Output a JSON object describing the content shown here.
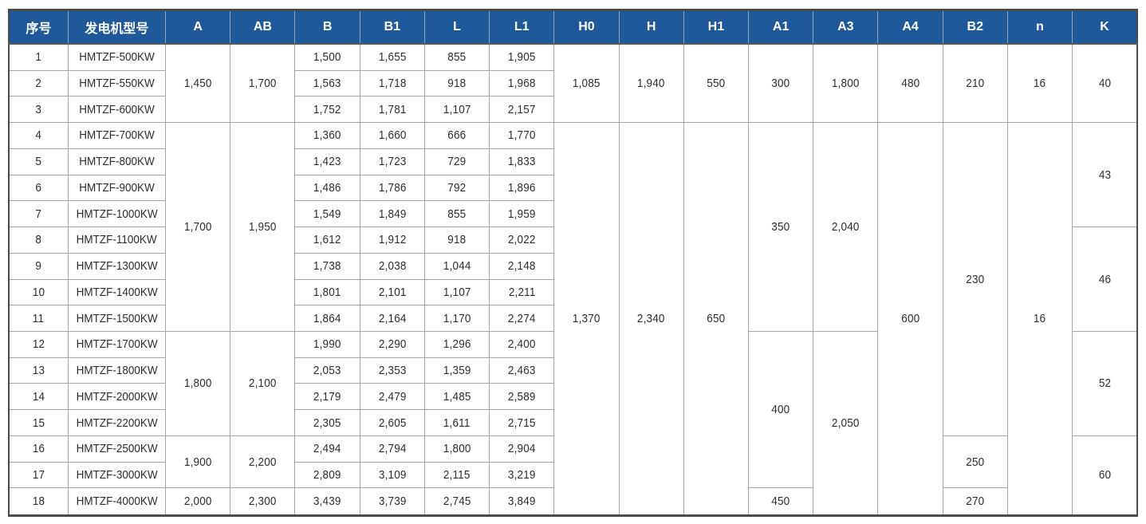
{
  "colors": {
    "header_bg": "#1e599c",
    "header_text": "#ffffff",
    "grid_line": "#a6a6a6",
    "outer_border": "#4a4a4a",
    "body_text": "#2d2d2d",
    "background": "#ffffff"
  },
  "table": {
    "headers": [
      {
        "key": "no",
        "label": "序号"
      },
      {
        "key": "model",
        "label": "发电机型号"
      },
      {
        "key": "A",
        "label": "A"
      },
      {
        "key": "AB",
        "label": "AB"
      },
      {
        "key": "B",
        "label": "B"
      },
      {
        "key": "B1",
        "label": "B1"
      },
      {
        "key": "L",
        "label": "L"
      },
      {
        "key": "L1",
        "label": "L1"
      },
      {
        "key": "H0",
        "label": "H0"
      },
      {
        "key": "H",
        "label": "H"
      },
      {
        "key": "H1",
        "label": "H1"
      },
      {
        "key": "A1",
        "label": "A1"
      },
      {
        "key": "A3",
        "label": "A3"
      },
      {
        "key": "A4",
        "label": "A4"
      },
      {
        "key": "B2",
        "label": "B2"
      },
      {
        "key": "n",
        "label": "n"
      },
      {
        "key": "K",
        "label": "K"
      }
    ],
    "rows": [
      [
        [
          "no",
          "1"
        ],
        [
          "model",
          "HMTZF-500KW"
        ],
        [
          "A",
          "1,450",
          3
        ],
        [
          "AB",
          "1,700",
          3
        ],
        [
          "B",
          "1,500"
        ],
        [
          "B1",
          "1,655"
        ],
        [
          "L",
          "855"
        ],
        [
          "L1",
          "1,905"
        ],
        [
          "H0",
          "1,085",
          3
        ],
        [
          "H",
          "1,940",
          3
        ],
        [
          "H1",
          "550",
          3
        ],
        [
          "A1",
          "300",
          3
        ],
        [
          "A3",
          "1,800",
          3
        ],
        [
          "A4",
          "480",
          3
        ],
        [
          "B2",
          "210",
          3
        ],
        [
          "n",
          "16",
          3
        ],
        [
          "K",
          "40",
          3
        ]
      ],
      [
        [
          "no",
          "2"
        ],
        [
          "model",
          "HMTZF-550KW"
        ],
        [
          "B",
          "1,563"
        ],
        [
          "B1",
          "1,718"
        ],
        [
          "L",
          "918"
        ],
        [
          "L1",
          "1,968"
        ]
      ],
      [
        [
          "no",
          "3"
        ],
        [
          "model",
          "HMTZF-600KW"
        ],
        [
          "B",
          "1,752"
        ],
        [
          "B1",
          "1,781"
        ],
        [
          "L",
          "1,107"
        ],
        [
          "L1",
          "2,157"
        ]
      ],
      [
        [
          "no",
          "4"
        ],
        [
          "model",
          "HMTZF-700KW"
        ],
        [
          "A",
          "1,700",
          8
        ],
        [
          "AB",
          "1,950",
          8
        ],
        [
          "B",
          "1,360"
        ],
        [
          "B1",
          "1,660"
        ],
        [
          "L",
          "666"
        ],
        [
          "L1",
          "1,770"
        ],
        [
          "H0",
          "1,370",
          15
        ],
        [
          "H",
          "2,340",
          15
        ],
        [
          "H1",
          "650",
          15
        ],
        [
          "A1",
          "350",
          8
        ],
        [
          "A3",
          "2,040",
          8
        ],
        [
          "A4",
          "600",
          15
        ],
        [
          "B2",
          "230",
          12
        ],
        [
          "n",
          "16",
          15
        ],
        [
          "K",
          "43",
          4
        ]
      ],
      [
        [
          "no",
          "5"
        ],
        [
          "model",
          "HMTZF-800KW"
        ],
        [
          "B",
          "1,423"
        ],
        [
          "B1",
          "1,723"
        ],
        [
          "L",
          "729"
        ],
        [
          "L1",
          "1,833"
        ]
      ],
      [
        [
          "no",
          "6"
        ],
        [
          "model",
          "HMTZF-900KW"
        ],
        [
          "B",
          "1,486"
        ],
        [
          "B1",
          "1,786"
        ],
        [
          "L",
          "792"
        ],
        [
          "L1",
          "1,896"
        ]
      ],
      [
        [
          "no",
          "7"
        ],
        [
          "model",
          "HMTZF-1000KW"
        ],
        [
          "B",
          "1,549"
        ],
        [
          "B1",
          "1,849"
        ],
        [
          "L",
          "855"
        ],
        [
          "L1",
          "1,959"
        ]
      ],
      [
        [
          "no",
          "8"
        ],
        [
          "model",
          "HMTZF-1100KW"
        ],
        [
          "B",
          "1,612"
        ],
        [
          "B1",
          "1,912"
        ],
        [
          "L",
          "918"
        ],
        [
          "L1",
          "2,022"
        ],
        [
          "K",
          "46",
          4
        ]
      ],
      [
        [
          "no",
          "9"
        ],
        [
          "model",
          "HMTZF-1300KW"
        ],
        [
          "B",
          "1,738"
        ],
        [
          "B1",
          "2,038"
        ],
        [
          "L",
          "1,044"
        ],
        [
          "L1",
          "2,148"
        ]
      ],
      [
        [
          "no",
          "10"
        ],
        [
          "model",
          "HMTZF-1400KW"
        ],
        [
          "B",
          "1,801"
        ],
        [
          "B1",
          "2,101"
        ],
        [
          "L",
          "1,107"
        ],
        [
          "L1",
          "2,211"
        ]
      ],
      [
        [
          "no",
          "11"
        ],
        [
          "model",
          "HMTZF-1500KW"
        ],
        [
          "B",
          "1,864"
        ],
        [
          "B1",
          "2,164"
        ],
        [
          "L",
          "1,170"
        ],
        [
          "L1",
          "2,274"
        ]
      ],
      [
        [
          "no",
          "12"
        ],
        [
          "model",
          "HMTZF-1700KW"
        ],
        [
          "A",
          "1,800",
          4
        ],
        [
          "AB",
          "2,100",
          4
        ],
        [
          "B",
          "1,990"
        ],
        [
          "B1",
          "2,290"
        ],
        [
          "L",
          "1,296"
        ],
        [
          "L1",
          "2,400"
        ],
        [
          "A1",
          "400",
          6
        ],
        [
          "A3",
          "2,050",
          7
        ],
        [
          "K",
          "52",
          4
        ]
      ],
      [
        [
          "no",
          "13"
        ],
        [
          "model",
          "HMTZF-1800KW"
        ],
        [
          "B",
          "2,053"
        ],
        [
          "B1",
          "2,353"
        ],
        [
          "L",
          "1,359"
        ],
        [
          "L1",
          "2,463"
        ]
      ],
      [
        [
          "no",
          "14"
        ],
        [
          "model",
          "HMTZF-2000KW"
        ],
        [
          "B",
          "2,179"
        ],
        [
          "B1",
          "2,479"
        ],
        [
          "L",
          "1,485"
        ],
        [
          "L1",
          "2,589"
        ]
      ],
      [
        [
          "no",
          "15"
        ],
        [
          "model",
          "HMTZF-2200KW"
        ],
        [
          "B",
          "2,305"
        ],
        [
          "B1",
          "2,605"
        ],
        [
          "L",
          "1,611"
        ],
        [
          "L1",
          "2,715"
        ]
      ],
      [
        [
          "no",
          "16"
        ],
        [
          "model",
          "HMTZF-2500KW"
        ],
        [
          "A",
          "1,900",
          2
        ],
        [
          "AB",
          "2,200",
          2
        ],
        [
          "B",
          "2,494"
        ],
        [
          "B1",
          "2,794"
        ],
        [
          "L",
          "1,800"
        ],
        [
          "L1",
          "2,904"
        ],
        [
          "B2",
          "250",
          2
        ],
        [
          "K",
          "60",
          3
        ]
      ],
      [
        [
          "no",
          "17"
        ],
        [
          "model",
          "HMTZF-3000KW"
        ],
        [
          "B",
          "2,809"
        ],
        [
          "B1",
          "3,109"
        ],
        [
          "L",
          "2,115"
        ],
        [
          "L1",
          "3,219"
        ]
      ],
      [
        [
          "no",
          "18"
        ],
        [
          "model",
          "HMTZF-4000KW"
        ],
        [
          "A",
          "2,000"
        ],
        [
          "AB",
          "2,300"
        ],
        [
          "B",
          "3,439"
        ],
        [
          "B1",
          "3,739"
        ],
        [
          "L",
          "2,745"
        ],
        [
          "L1",
          "3,849"
        ],
        [
          "A1",
          "450"
        ],
        [
          "B2",
          "270"
        ]
      ]
    ]
  }
}
